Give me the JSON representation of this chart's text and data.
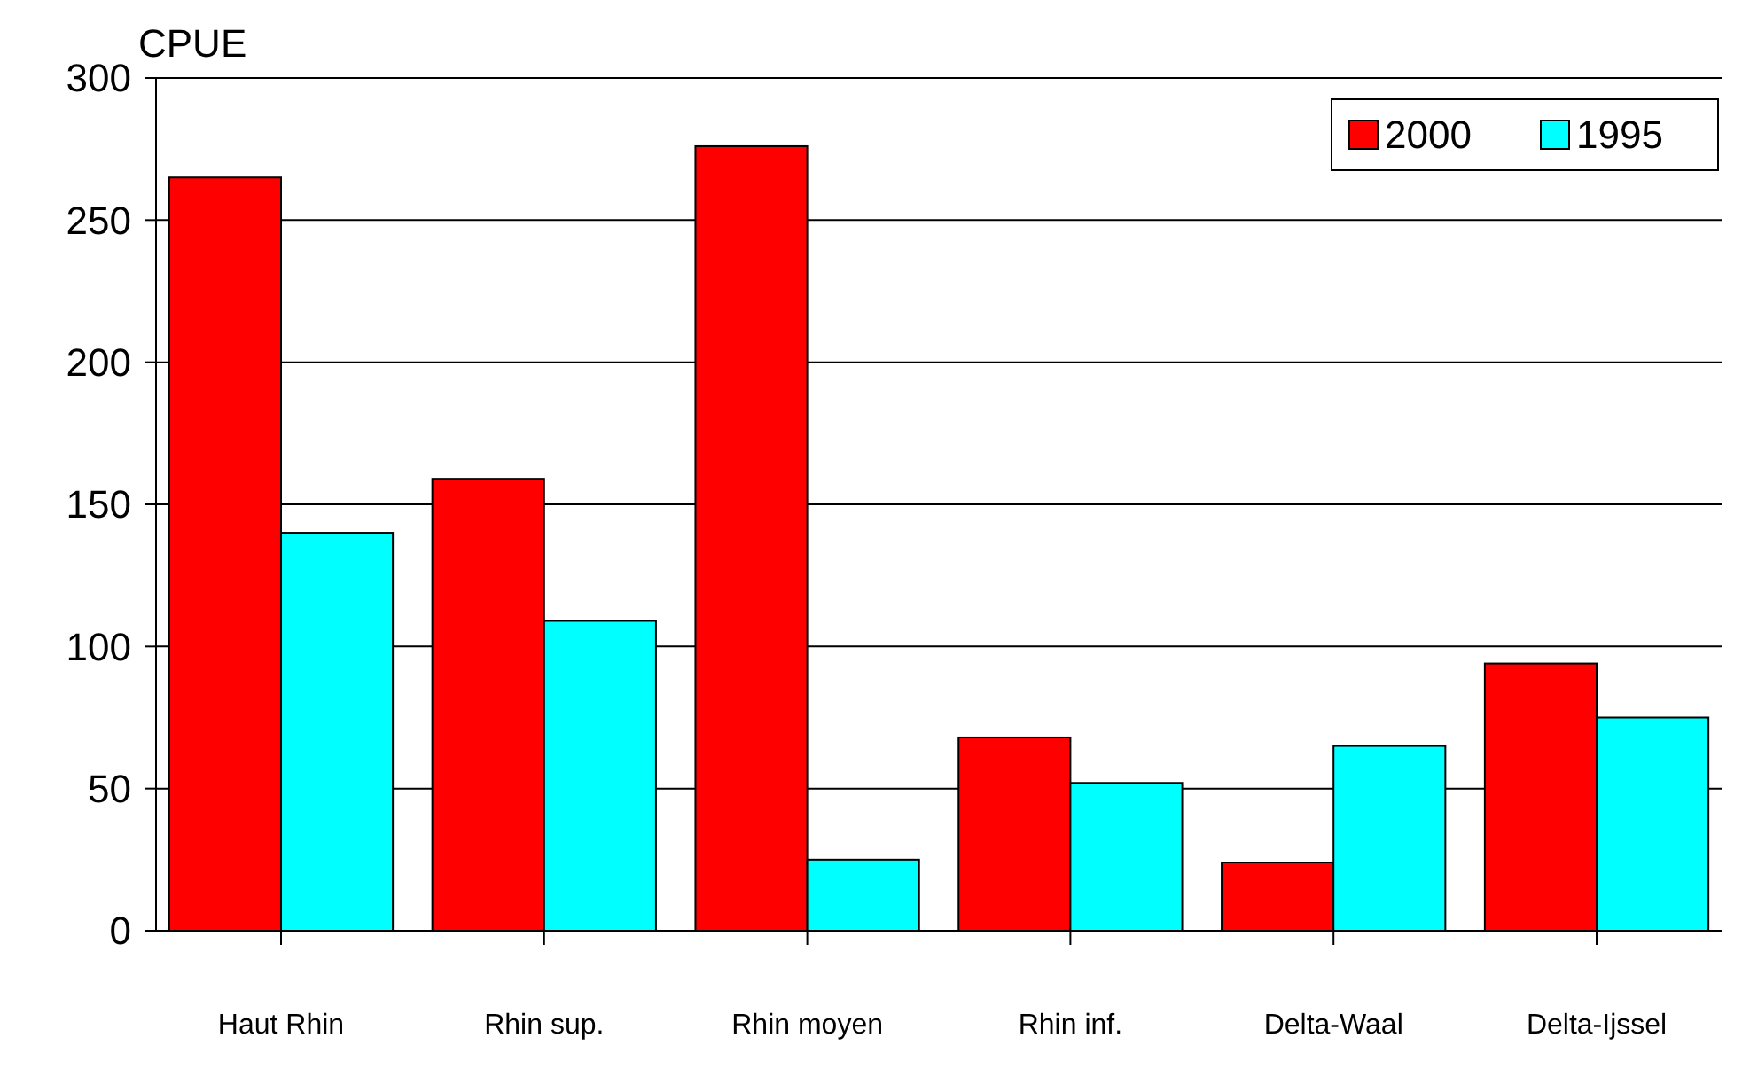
{
  "chart_data": {
    "type": "bar",
    "ylabel": "CPUE",
    "categories": [
      "Haut Rhin",
      "Rhin sup.",
      "Rhin moyen",
      "Rhin inf.",
      "Delta-Waal",
      "Delta-Ijssel"
    ],
    "series": [
      {
        "name": "2000",
        "color": "#ff0000",
        "values": [
          265,
          159,
          276,
          68,
          24,
          94
        ]
      },
      {
        "name": "1995",
        "color": "#00ffff",
        "values": [
          140,
          109,
          25,
          52,
          65,
          75
        ]
      }
    ],
    "ylim": [
      0,
      300
    ],
    "yticks": [
      0,
      50,
      100,
      150,
      200,
      250,
      300
    ],
    "grid": "y",
    "legend": "top right"
  }
}
